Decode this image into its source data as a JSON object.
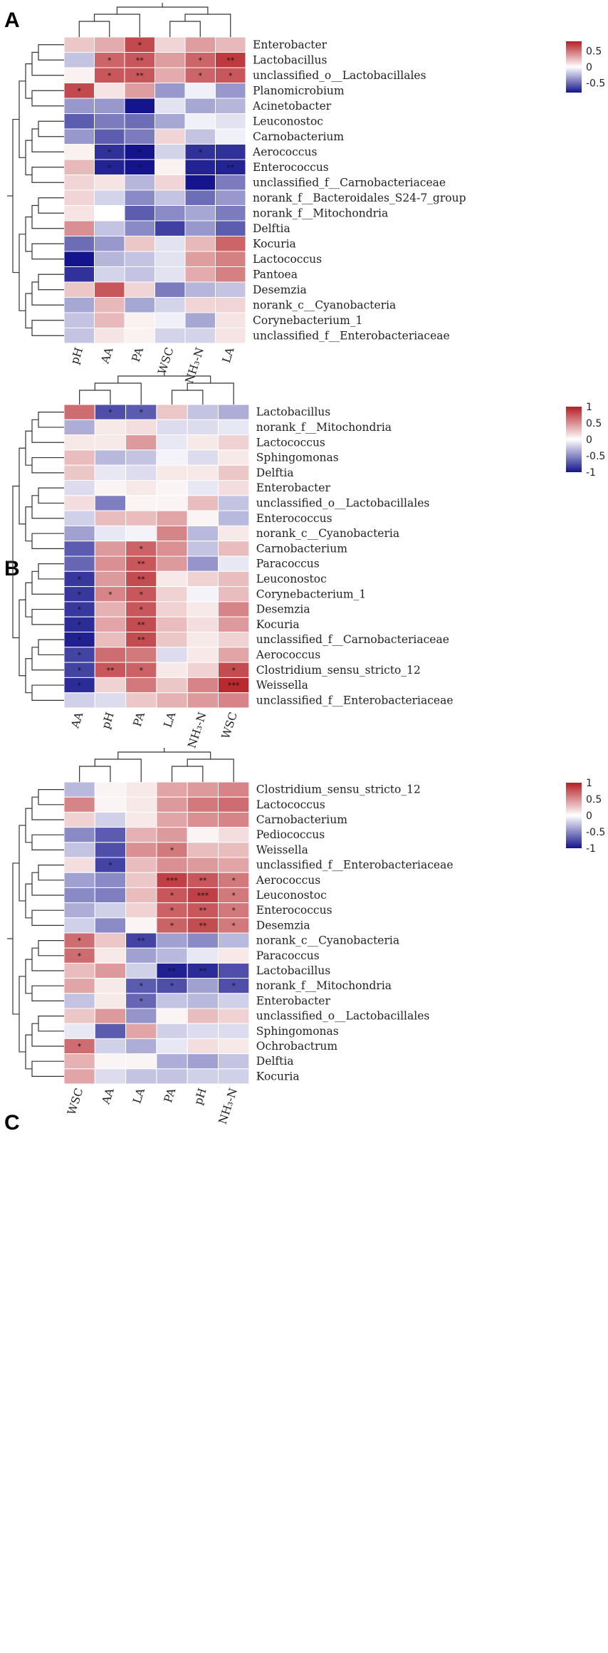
{
  "colors": {
    "neg": "#14148c",
    "mid": "#ffffff",
    "pos": "#b41f24"
  },
  "chart_data": [
    {
      "type": "heatmap",
      "title": "A",
      "legend": {
        "ticks": [
          "0.5",
          "0",
          "-0.5"
        ],
        "tick_values": [
          0.5,
          0,
          -0.5
        ],
        "range": [
          -0.8,
          0.8
        ],
        "position": "top-right"
      },
      "columns": [
        "pH",
        "AA",
        "PA",
        "WSC",
        "NH₃-N",
        "LA"
      ],
      "rows": [
        "Enterobacter",
        "Lactobacillus",
        "unclassified_o__Lactobacillales",
        "Planomicrobium",
        "Acinetobacter",
        "Leuconostoc",
        "Carnobacterium",
        "Aerococcus",
        "Enterococcus",
        "unclassified_f__Carnobacteriaceae",
        "norank_f__Bacteroidales_S24-7_group",
        "norank_f__Mitochondria",
        "Delftia",
        "Kocuria",
        "Lactococcus",
        "Pantoea",
        "Desemzia",
        "norank_c__Cyanobacteria",
        "Corynebacterium_1",
        "unclassified_f__Enterobacteriaceae"
      ],
      "values": [
        [
          0.2,
          0.3,
          0.65,
          0.15,
          0.35,
          0.25
        ],
        [
          -0.2,
          0.55,
          0.6,
          0.35,
          0.55,
          0.7
        ],
        [
          0.05,
          0.6,
          0.6,
          0.3,
          0.55,
          0.6
        ],
        [
          0.65,
          0.1,
          0.35,
          -0.35,
          -0.05,
          -0.35
        ],
        [
          -0.35,
          -0.35,
          -1.0,
          -0.1,
          -0.3,
          -0.25
        ],
        [
          -0.55,
          -0.45,
          -0.5,
          -0.3,
          -0.05,
          -0.1
        ],
        [
          -0.35,
          -0.55,
          -0.45,
          0.15,
          -0.2,
          -0.05
        ],
        [
          0.05,
          -0.7,
          -0.8,
          -0.15,
          -0.7,
          -0.7
        ],
        [
          0.25,
          -0.75,
          -0.8,
          0.05,
          -0.75,
          -0.75
        ],
        [
          0.15,
          0.1,
          -0.25,
          0.15,
          -0.85,
          -0.45
        ],
        [
          0.15,
          -0.15,
          -0.4,
          -0.2,
          -0.5,
          -0.35
        ],
        [
          0.1,
          0.0,
          -0.55,
          -0.4,
          -0.3,
          -0.45
        ],
        [
          0.4,
          -0.2,
          -0.4,
          -0.65,
          -0.35,
          -0.55
        ],
        [
          -0.5,
          -0.35,
          0.2,
          -0.1,
          0.25,
          0.55
        ],
        [
          -0.8,
          -0.25,
          -0.2,
          -0.1,
          0.35,
          0.45
        ],
        [
          -0.7,
          -0.15,
          -0.2,
          -0.1,
          0.3,
          0.45
        ],
        [
          0.2,
          0.6,
          0.15,
          -0.45,
          -0.25,
          -0.2
        ],
        [
          -0.3,
          0.25,
          -0.3,
          -0.15,
          0.15,
          0.15
        ],
        [
          -0.2,
          0.25,
          0.05,
          -0.05,
          -0.3,
          0.1
        ],
        [
          -0.2,
          0.1,
          0.05,
          -0.15,
          -0.15,
          0.1
        ]
      ],
      "significance": [
        [
          "",
          "",
          "*",
          "",
          "",
          ""
        ],
        [
          "",
          "*",
          "**",
          "",
          "*",
          "**"
        ],
        [
          "",
          "*",
          "**",
          "",
          "*",
          "*"
        ],
        [
          "*",
          "",
          "",
          "",
          "",
          ""
        ],
        [
          "",
          "",
          "",
          "",
          "",
          ""
        ],
        [
          "",
          "",
          "",
          "",
          "",
          ""
        ],
        [
          "",
          "",
          "",
          "",
          "",
          ""
        ],
        [
          "",
          "*",
          "*",
          "",
          "*",
          ""
        ],
        [
          "",
          "*",
          "*",
          "",
          "",
          "**"
        ],
        [
          "",
          "",
          "",
          "",
          "",
          ""
        ],
        [
          "",
          "",
          "",
          "",
          "",
          ""
        ],
        [
          "",
          "",
          "",
          "",
          "",
          ""
        ],
        [
          "",
          "",
          "",
          "",
          "",
          ""
        ],
        [
          "",
          "",
          "",
          "",
          "",
          ""
        ],
        [
          "",
          "",
          "",
          "",
          "",
          ""
        ],
        [
          "",
          "",
          "",
          "",
          "",
          ""
        ],
        [
          "",
          "",
          "",
          "",
          "",
          ""
        ],
        [
          "",
          "",
          "",
          "",
          "",
          ""
        ],
        [
          "",
          "",
          "",
          "",
          "",
          ""
        ],
        [
          "",
          "",
          "",
          "",
          "",
          ""
        ]
      ]
    },
    {
      "type": "heatmap",
      "title": "B",
      "legend": {
        "ticks": [
          "1",
          "0.5",
          "0",
          "-0.5",
          "-1"
        ],
        "tick_values": [
          1,
          0.5,
          0,
          -0.5,
          -1
        ],
        "range": [
          -1,
          1
        ],
        "position": "top-right"
      },
      "columns": [
        "AA",
        "pH",
        "PA",
        "LA",
        "NH₃-N",
        "WSC"
      ],
      "rows": [
        "Lactobacillus",
        "norank_f__Mitochondria",
        "Lactococcus",
        "Sphingomonas",
        "Delftia",
        "Enterobacter",
        "unclassified_o__Lactobacillales",
        "Enterococcus",
        "norank_c__Cyanobacteria",
        "Carnobacterium",
        "Paracoccus",
        "Leuconostoc",
        "Corynebacterium_1",
        "Desemzia",
        "Kocuria",
        "unclassified_f__Carnobacteriaceae",
        "Aerococcus",
        "Clostridium_sensu_stricto_12",
        "Weissella",
        "unclassified_f__Enterobacteriaceae"
      ],
      "values": [
        [
          0.65,
          -0.75,
          -0.7,
          0.25,
          -0.25,
          -0.35
        ],
        [
          -0.35,
          0.1,
          0.15,
          -0.15,
          -0.15,
          -0.1
        ],
        [
          0.1,
          0.1,
          0.45,
          -0.1,
          0.1,
          0.2
        ],
        [
          0.3,
          -0.3,
          -0.25,
          -0.05,
          -0.15,
          0.1
        ],
        [
          0.25,
          -0.1,
          -0.15,
          0.1,
          0.1,
          0.25
        ],
        [
          -0.15,
          0.05,
          0.1,
          0.05,
          -0.1,
          0.15
        ],
        [
          0.15,
          -0.55,
          0.05,
          0.05,
          0.3,
          -0.25
        ],
        [
          -0.2,
          0.3,
          0.3,
          0.4,
          0.05,
          -0.3
        ],
        [
          -0.4,
          -0.1,
          -0.05,
          0.55,
          -0.3,
          0.1
        ],
        [
          -0.7,
          0.45,
          0.7,
          0.5,
          -0.25,
          0.3
        ],
        [
          -0.65,
          0.5,
          0.75,
          0.45,
          -0.45,
          -0.1
        ],
        [
          -0.85,
          0.45,
          0.8,
          0.1,
          0.2,
          0.3
        ],
        [
          -0.85,
          0.55,
          0.75,
          0.2,
          -0.05,
          0.3
        ],
        [
          -0.85,
          0.35,
          0.75,
          0.2,
          0.1,
          0.55
        ],
        [
          -0.9,
          0.4,
          0.8,
          0.3,
          0.15,
          0.45
        ],
        [
          -0.95,
          0.3,
          0.8,
          0.25,
          0.1,
          0.2
        ],
        [
          -0.8,
          0.65,
          0.6,
          -0.15,
          0.1,
          0.4
        ],
        [
          -0.8,
          0.75,
          0.7,
          0.1,
          0.2,
          0.8
        ],
        [
          -0.9,
          0.2,
          0.6,
          0.25,
          0.55,
          0.95
        ],
        [
          -0.2,
          -0.15,
          0.25,
          0.35,
          0.45,
          0.55
        ]
      ],
      "significance": [
        [
          "",
          "*",
          "*",
          "",
          "",
          ""
        ],
        [
          "",
          "",
          "",
          "",
          "",
          ""
        ],
        [
          "",
          "",
          "",
          "",
          "",
          ""
        ],
        [
          "",
          "",
          "",
          "",
          "",
          ""
        ],
        [
          "",
          "",
          "",
          "",
          "",
          ""
        ],
        [
          "",
          "",
          "",
          "",
          "",
          ""
        ],
        [
          "",
          "",
          "",
          "",
          "",
          ""
        ],
        [
          "",
          "",
          "",
          "",
          "",
          ""
        ],
        [
          "",
          "",
          "",
          "",
          "",
          ""
        ],
        [
          "",
          "",
          "*",
          "",
          "",
          ""
        ],
        [
          "",
          "",
          "**",
          "",
          "",
          ""
        ],
        [
          "*",
          "",
          "**",
          "",
          "",
          ""
        ],
        [
          "*",
          "*",
          "*",
          "",
          "",
          ""
        ],
        [
          "*",
          "",
          "*",
          "",
          "",
          ""
        ],
        [
          "*",
          "",
          "**",
          "",
          "",
          ""
        ],
        [
          "*",
          "",
          "**",
          "",
          "",
          ""
        ],
        [
          "*",
          "",
          "",
          "",
          "",
          ""
        ],
        [
          "*",
          "**",
          "*",
          "",
          "",
          "*"
        ],
        [
          "*",
          "",
          "",
          "",
          "",
          "***"
        ],
        [
          "",
          "",
          "",
          "",
          "",
          ""
        ]
      ]
    },
    {
      "type": "heatmap",
      "title": "C",
      "legend": {
        "ticks": [
          "1",
          "0.5",
          "0",
          "-0.5",
          "-1"
        ],
        "tick_values": [
          1,
          0.5,
          0,
          -0.5,
          -1
        ],
        "range": [
          -1,
          1
        ],
        "position": "top-right"
      },
      "columns": [
        "WSC",
        "AA",
        "LA",
        "PA",
        "pH",
        "NH₃-N"
      ],
      "rows": [
        "Clostridium_sensu_stricto_12",
        "Lactococcus",
        "Carnobacterium",
        "Pediococcus",
        "Weissella",
        "unclassified_f__Enterobacteriaceae",
        "Aerococcus",
        "Leuconostoc",
        "Enterococcus",
        "Desemzia",
        "norank_c__Cyanobacteria",
        "Paracoccus",
        "Lactobacillus",
        "norank_f__Mitochondria",
        "Enterobacter",
        "unclassified_o__Lactobacillales",
        "Sphingomonas",
        "Ochrobactrum",
        "Delftia",
        "Kocuria"
      ],
      "values": [
        [
          -0.3,
          0.05,
          0.1,
          0.4,
          0.45,
          0.55
        ],
        [
          0.55,
          0.05,
          0.1,
          0.45,
          0.6,
          0.65
        ],
        [
          0.2,
          -0.2,
          0.1,
          0.4,
          0.5,
          0.55
        ],
        [
          -0.5,
          -0.7,
          0.35,
          0.45,
          0.05,
          0.15
        ],
        [
          -0.25,
          -0.75,
          0.5,
          0.6,
          0.3,
          0.3
        ],
        [
          0.15,
          -0.8,
          0.3,
          0.5,
          0.45,
          0.4
        ],
        [
          -0.4,
          -0.5,
          0.25,
          0.85,
          0.75,
          0.6
        ],
        [
          -0.5,
          -0.55,
          0.3,
          0.75,
          0.85,
          0.6
        ],
        [
          -0.35,
          -0.2,
          0.2,
          0.7,
          0.75,
          0.6
        ],
        [
          -0.2,
          -0.5,
          0.05,
          0.7,
          0.8,
          0.6
        ],
        [
          0.65,
          0.25,
          -0.8,
          -0.4,
          -0.5,
          -0.3
        ],
        [
          0.65,
          0.1,
          -0.4,
          -0.3,
          -0.1,
          0.1
        ],
        [
          0.3,
          0.45,
          -0.2,
          -0.95,
          -0.9,
          -0.75
        ],
        [
          0.4,
          0.1,
          -0.7,
          -0.75,
          -0.4,
          -0.75
        ],
        [
          -0.25,
          0.1,
          -0.65,
          -0.25,
          -0.3,
          -0.2
        ],
        [
          0.25,
          0.45,
          -0.45,
          0.05,
          0.3,
          0.2
        ],
        [
          -0.1,
          -0.7,
          0.4,
          -0.2,
          -0.15,
          -0.15
        ],
        [
          0.65,
          -0.2,
          -0.35,
          -0.1,
          0.15,
          0.1
        ],
        [
          0.35,
          0.05,
          0.05,
          -0.35,
          -0.4,
          -0.25
        ],
        [
          0.4,
          -0.15,
          -0.25,
          -0.25,
          -0.2,
          -0.2
        ]
      ],
      "significance": [
        [
          "",
          "",
          "",
          "",
          "",
          ""
        ],
        [
          "",
          "",
          "",
          "",
          "",
          ""
        ],
        [
          "",
          "",
          "",
          "",
          "",
          ""
        ],
        [
          "",
          "",
          "",
          "",
          "",
          ""
        ],
        [
          "",
          "",
          "",
          "*",
          "",
          ""
        ],
        [
          "",
          "*",
          "",
          "",
          "",
          ""
        ],
        [
          "",
          "",
          "",
          "***",
          "**",
          "*"
        ],
        [
          "",
          "",
          "",
          "*",
          "***",
          "*"
        ],
        [
          "",
          "",
          "",
          "*",
          "**",
          "*"
        ],
        [
          "",
          "",
          "",
          "*",
          "**",
          "*"
        ],
        [
          "*",
          "",
          "**",
          "",
          "",
          ""
        ],
        [
          "*",
          "",
          "",
          "",
          "",
          ""
        ],
        [
          "",
          "",
          "",
          "**",
          "**",
          ""
        ],
        [
          "",
          "",
          "*",
          "*",
          "",
          "*"
        ],
        [
          "",
          "",
          "*",
          "",
          "",
          ""
        ],
        [
          "",
          "",
          "",
          "",
          "",
          ""
        ],
        [
          "",
          "",
          "",
          "",
          "",
          ""
        ],
        [
          "*",
          "",
          "",
          "",
          "",
          ""
        ],
        [
          "",
          "",
          "",
          "",
          "",
          ""
        ],
        [
          "",
          "",
          "",
          "",
          "",
          ""
        ]
      ]
    }
  ]
}
